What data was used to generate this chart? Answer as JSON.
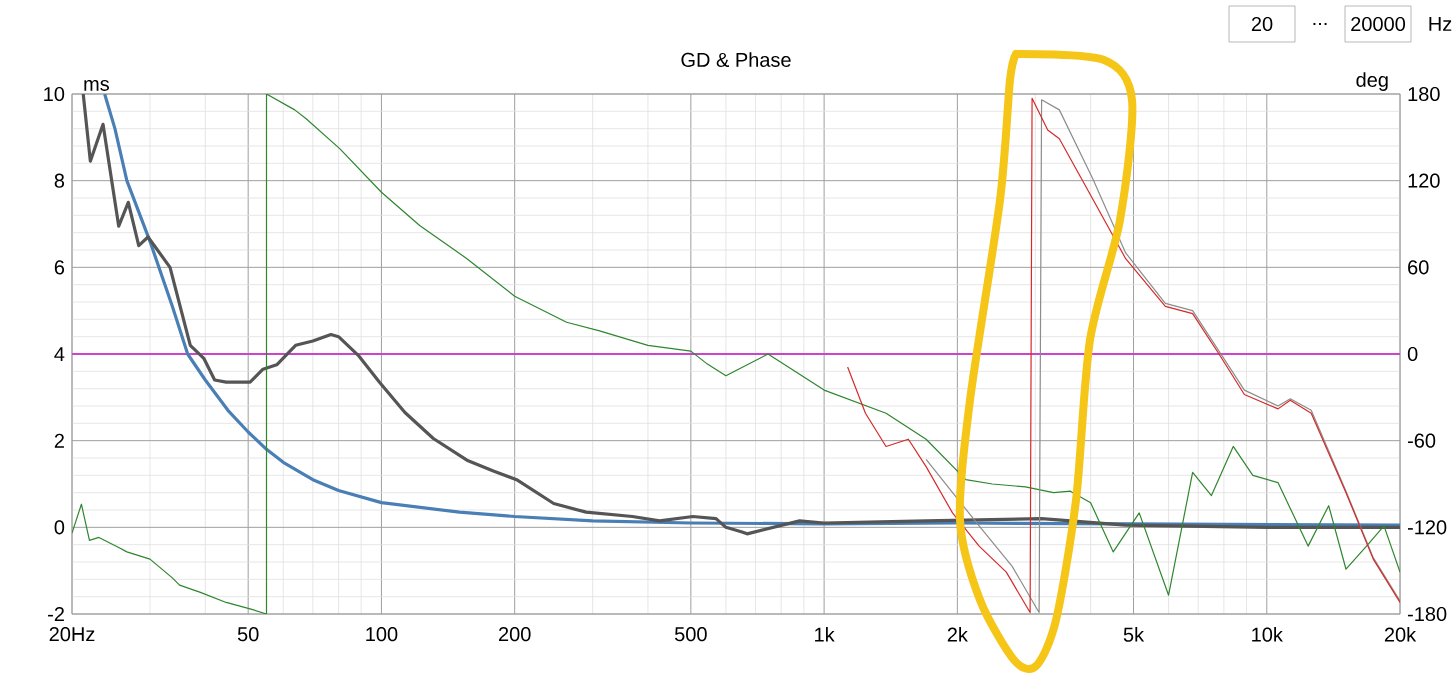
{
  "chart_data": {
    "type": "line",
    "title": "GD & Phase",
    "ylabel": "ms",
    "y2label": "deg",
    "log": "x",
    "grid": true,
    "xlim": [
      20,
      20000
    ],
    "xticks": [
      {
        "value": 20,
        "label": "20Hz"
      },
      50,
      100,
      200,
      500,
      {
        "value": 1000,
        "label": "1k"
      },
      {
        "value": 2000,
        "label": "2k"
      },
      {
        "value": 5000,
        "label": "5k"
      },
      {
        "value": 10000,
        "label": "10k"
      },
      {
        "value": 20000,
        "label": "20k"
      }
    ],
    "ylim": [
      -2,
      10
    ],
    "yticks": [
      -2,
      0,
      2,
      4,
      6,
      8,
      10
    ],
    "y2lim": [
      -180,
      180
    ],
    "y2ticks": [
      -180,
      -120,
      -60,
      0,
      60,
      120,
      180
    ],
    "ref_lines": [
      {
        "axis": "y",
        "value": 4,
        "color": "#cc44cc"
      }
    ],
    "annotations": [
      "20",
      "...",
      "20000",
      "Hz"
    ],
    "series": [
      {
        "color": "#4a7fb5",
        "x": [
          23.7,
          25,
          26.6,
          30,
          33.7,
          36.5,
          40,
          45,
          50,
          55,
          60,
          70,
          80,
          100,
          150,
          200,
          300,
          500,
          1000,
          2000,
          5000,
          20000
        ],
        "values": [
          10,
          9.2,
          8.0,
          6.6,
          5.1,
          4.0,
          3.4,
          2.7,
          2.2,
          1.8,
          1.5,
          1.1,
          0.85,
          0.57,
          0.35,
          0.25,
          0.15,
          0.1,
          0.08,
          0.1,
          0.08,
          0.05
        ]
      },
      {
        "color": "#555555",
        "x": [
          21.2,
          22,
          23.5,
          25.5,
          26.8,
          28.3,
          29.7,
          33.3,
          35.1,
          37,
          39.7,
          42,
          44.6,
          50.5,
          54,
          58,
          64,
          70,
          76.9,
          80,
          89,
          99,
          113,
          131,
          156,
          179,
          202,
          245,
          290,
          369,
          425,
          505,
          570,
          600,
          650,
          670,
          880,
          1000,
          1700,
          3100,
          4800,
          10000,
          20000
        ],
        "values": [
          10,
          8.45,
          9.3,
          6.95,
          7.5,
          6.5,
          6.7,
          6.0,
          5.1,
          4.2,
          3.9,
          3.4,
          3.35,
          3.35,
          3.65,
          3.75,
          4.2,
          4.3,
          4.45,
          4.4,
          3.95,
          3.35,
          2.65,
          2.05,
          1.55,
          1.3,
          1.1,
          0.55,
          0.35,
          0.25,
          0.15,
          0.25,
          0.2,
          0,
          -0.1,
          -0.15,
          0.15,
          0.1,
          0.15,
          0.2,
          0.05,
          0,
          0
        ]
      },
      {
        "color": "#2e862e",
        "axis": "y2",
        "x": [
          20,
          21,
          21.9,
          23,
          25.5,
          26.6,
          30,
          33.7,
          35,
          39,
          44.6,
          51.2,
          55,
          55,
          63.7,
          67.5,
          80.6,
          100,
          122,
          156,
          200,
          262,
          311,
          400,
          500,
          545,
          600,
          747,
          1000,
          1380,
          1700,
          2090,
          2400,
          2850,
          3300,
          3600,
          4000,
          4500,
          5150,
          6000,
          6800,
          7500,
          8400,
          9300,
          10600,
          12400,
          13800,
          15100,
          16800,
          18400,
          20000
        ],
        "values": [
          -124,
          -104,
          -129,
          -127,
          -134,
          -137,
          -142,
          -155,
          -160,
          -165,
          -172,
          -177,
          -180,
          180,
          169,
          163,
          142,
          112,
          89,
          66,
          40,
          22,
          16,
          6,
          2,
          -7,
          -15,
          0,
          -25,
          -41,
          -59,
          -87,
          -90,
          -92,
          -96,
          -95,
          -103,
          -137,
          -110,
          -167,
          -82,
          -98,
          -64,
          -84,
          -89,
          -133,
          -105,
          -149,
          -133,
          -119,
          -151
        ]
      },
      {
        "color": "#8c8c8c",
        "axis": "y2",
        "x": [
          1700,
          2240,
          2660,
          3060,
          3100,
          3400,
          4050,
          4800,
          5900,
          6800,
          7800,
          8900,
          10600,
          11300,
          12600,
          15100,
          17400,
          20000
        ],
        "values": [
          -73,
          -119,
          -147,
          -179,
          176,
          169,
          121,
          70,
          35,
          30,
          2,
          -25,
          -36,
          -31,
          -39,
          -95,
          -141,
          -171
        ]
      },
      {
        "color": "#d42a2a",
        "axis": "y2",
        "x": [
          1130,
          1240,
          1380,
          1550,
          1700,
          1950,
          2240,
          2580,
          2920,
          2950,
          3200,
          3400,
          4050,
          4800,
          5900,
          6800,
          7800,
          8900,
          10600,
          11300,
          12600,
          15100,
          17400,
          20000
        ],
        "values": [
          -9,
          -41,
          -64,
          -59,
          -78,
          -110,
          -133,
          -151,
          -179,
          177,
          155,
          149,
          107,
          66,
          33,
          28,
          0,
          -28,
          -38,
          -32,
          -41,
          -96,
          -142,
          -172
        ]
      }
    ]
  }
}
